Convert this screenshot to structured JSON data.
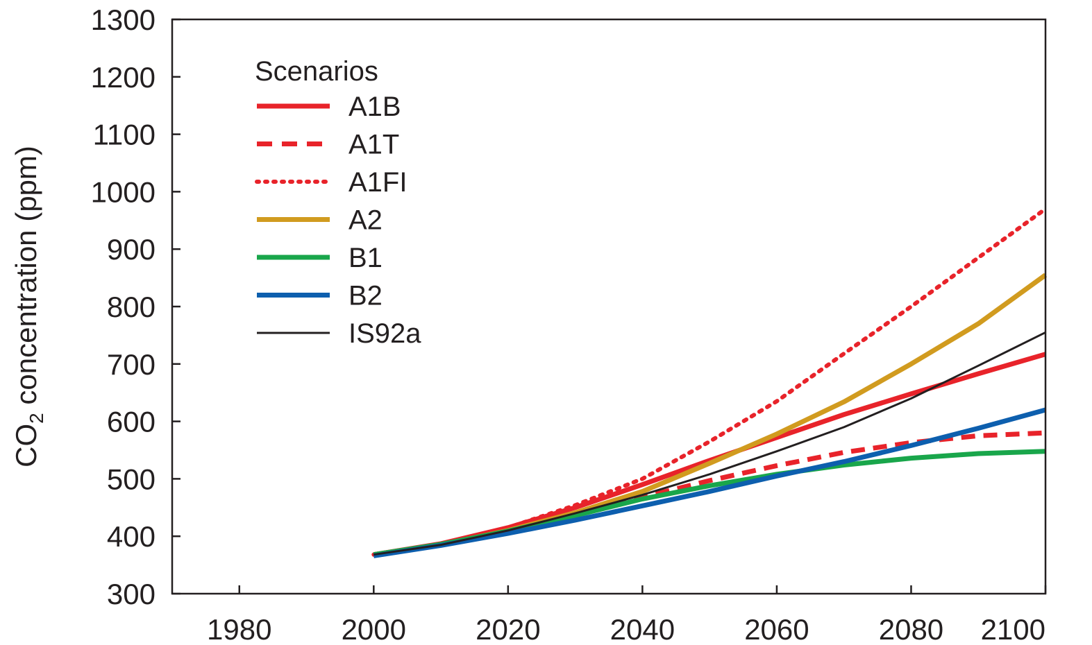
{
  "chart_data": {
    "type": "line",
    "xlim": [
      1970,
      2100
    ],
    "ylim": [
      300,
      1300
    ],
    "x_ticks": [
      1980,
      2000,
      2020,
      2040,
      2060,
      2080,
      2100
    ],
    "y_ticks": [
      300,
      400,
      500,
      600,
      700,
      800,
      900,
      1000,
      1100,
      1200,
      1300
    ],
    "xlabel": "",
    "ylabel": "CO2 concentration (ppm)",
    "ylabel_parts": {
      "prefix": "CO",
      "subscript": "2",
      "suffix": " concentration (ppm)"
    },
    "grid": false,
    "legend": {
      "title": "Scenarios",
      "position": "top-left"
    },
    "series": [
      {
        "name": "A1B",
        "color": "#e8232a",
        "style": "solid",
        "width": 7,
        "x": [
          2000,
          2010,
          2020,
          2030,
          2040,
          2050,
          2060,
          2070,
          2080,
          2090,
          2100
        ],
        "values": [
          368,
          387,
          415,
          450,
          490,
          532,
          572,
          612,
          648,
          683,
          717
        ]
      },
      {
        "name": "A1T",
        "color": "#e8232a",
        "style": "dashed",
        "width": 7,
        "x": [
          2000,
          2010,
          2020,
          2030,
          2040,
          2050,
          2060,
          2070,
          2080,
          2090,
          2100
        ],
        "values": [
          368,
          386,
          410,
          438,
          468,
          497,
          523,
          546,
          563,
          575,
          580
        ]
      },
      {
        "name": "A1FI",
        "color": "#e8232a",
        "style": "dotted",
        "width": 6,
        "x": [
          2000,
          2010,
          2020,
          2030,
          2040,
          2050,
          2060,
          2070,
          2080,
          2090,
          2100
        ],
        "values": [
          368,
          386,
          415,
          454,
          500,
          565,
          635,
          718,
          800,
          885,
          970
        ]
      },
      {
        "name": "A2",
        "color": "#d19b1f",
        "style": "solid",
        "width": 7,
        "x": [
          2000,
          2010,
          2020,
          2030,
          2040,
          2050,
          2060,
          2070,
          2080,
          2090,
          2100
        ],
        "values": [
          368,
          385,
          410,
          441,
          478,
          527,
          578,
          634,
          700,
          770,
          855
        ]
      },
      {
        "name": "B1",
        "color": "#19a64b",
        "style": "solid",
        "width": 7,
        "x": [
          2000,
          2010,
          2020,
          2030,
          2040,
          2050,
          2060,
          2070,
          2080,
          2090,
          2100
        ],
        "values": [
          368,
          386,
          409,
          436,
          465,
          488,
          508,
          524,
          536,
          544,
          548
        ]
      },
      {
        "name": "B2",
        "color": "#0d5fae",
        "style": "solid",
        "width": 7,
        "x": [
          2000,
          2010,
          2020,
          2030,
          2040,
          2050,
          2060,
          2070,
          2080,
          2090,
          2100
        ],
        "values": [
          366,
          384,
          405,
          428,
          453,
          478,
          505,
          530,
          558,
          588,
          620
        ]
      },
      {
        "name": "IS92a",
        "color": "#231f20",
        "style": "solid",
        "width": 3,
        "x": [
          2000,
          2010,
          2020,
          2030,
          2040,
          2050,
          2060,
          2070,
          2080,
          2090,
          2100
        ],
        "values": [
          368,
          385,
          410,
          440,
          472,
          508,
          548,
          590,
          640,
          697,
          755
        ]
      }
    ]
  }
}
